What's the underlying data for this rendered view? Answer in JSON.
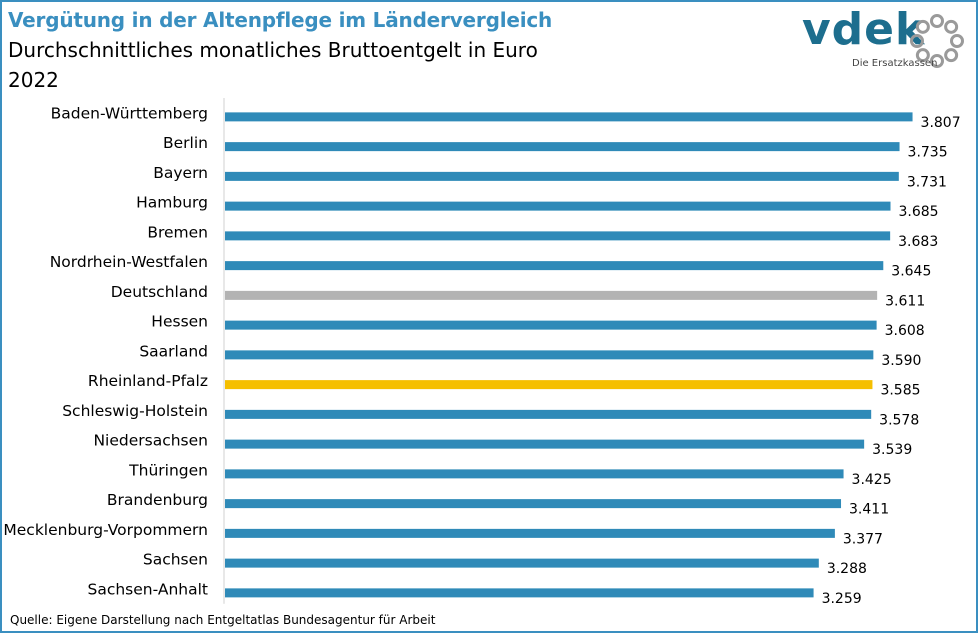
{
  "header": {
    "title": "Vergütung in der Altenpflege im Ländervergleich",
    "subtitle": "Durchschnittliches monatliches Bruttoentgelt in Euro",
    "year": "2022"
  },
  "logo": {
    "text": "vdek",
    "tagline": "Die Ersatzkassen",
    "color": "#1d6e8e",
    "ring_color": "#9a9a9a"
  },
  "source": "Quelle: Eigene Darstellung nach Entgeltatlas Bundesagentur für Arbeit",
  "colors": {
    "default_bar": "#2f8ab8",
    "highlight_germany": "#b3b3b3",
    "highlight_state": "#f5bf00",
    "frame": "#3a8fc0"
  },
  "chart_data": {
    "type": "bar",
    "orientation": "horizontal",
    "categories": [
      "Baden-Württemberg",
      "Berlin",
      "Bayern",
      "Hamburg",
      "Bremen",
      "Nordrhein-Westfalen",
      "Deutschland",
      "Hessen",
      "Saarland",
      "Rheinland-Pfalz",
      "Schleswig-Holstein",
      "Niedersachsen",
      "Thüringen",
      "Brandenburg",
      "Mecklenburg-Vorpommern",
      "Sachsen",
      "Sachsen-Anhalt"
    ],
    "values": [
      3807,
      3735,
      3731,
      3685,
      3683,
      3645,
      3611,
      3608,
      3590,
      3585,
      3578,
      3539,
      3425,
      3411,
      3377,
      3288,
      3259
    ],
    "value_labels": [
      "3.807",
      "3.735",
      "3.731",
      "3.685",
      "3.683",
      "3.645",
      "3.611",
      "3.608",
      "3.590",
      "3.585",
      "3.578",
      "3.539",
      "3.425",
      "3.411",
      "3.377",
      "3.288",
      "3.259"
    ],
    "bar_colors": [
      "#2f8ab8",
      "#2f8ab8",
      "#2f8ab8",
      "#2f8ab8",
      "#2f8ab8",
      "#2f8ab8",
      "#b3b3b3",
      "#2f8ab8",
      "#2f8ab8",
      "#f5bf00",
      "#2f8ab8",
      "#2f8ab8",
      "#2f8ab8",
      "#2f8ab8",
      "#2f8ab8",
      "#2f8ab8",
      "#2f8ab8"
    ],
    "xlim": [
      0,
      4000
    ],
    "grid": false,
    "legend": "none",
    "axis_line": "left"
  }
}
